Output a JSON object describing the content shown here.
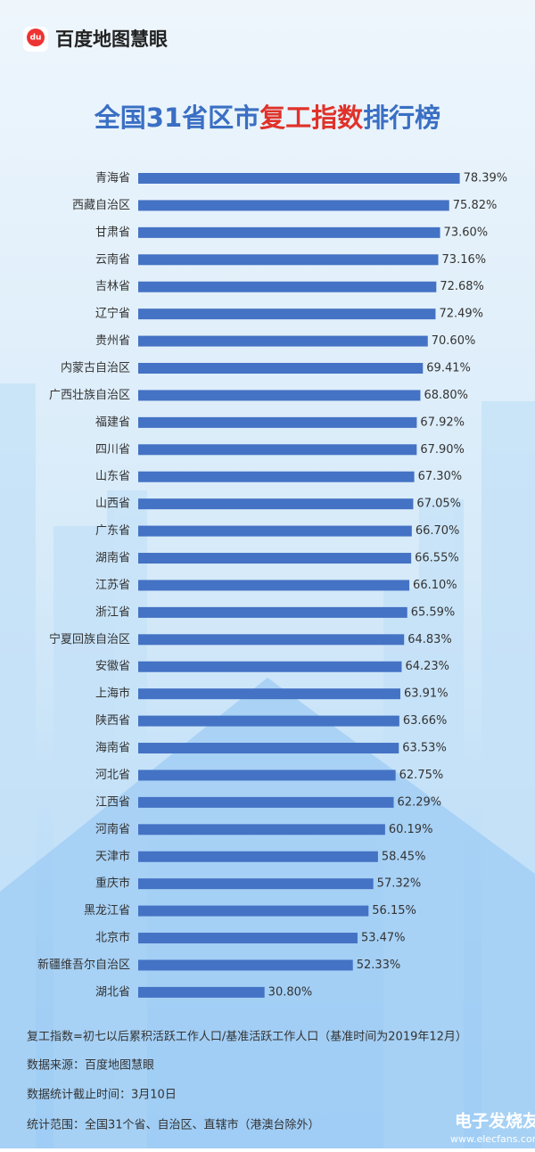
{
  "brand": {
    "icon": "du",
    "name": "百度地图慧眼"
  },
  "chart_data": {
    "type": "bar",
    "orientation": "horizontal",
    "title": [
      "全国31省区市",
      "复工指数",
      "排行榜"
    ],
    "title_colors": [
      "#3a6fc4",
      "#e0322a",
      "#3a6fc4"
    ],
    "color": "#4472c4",
    "categories": [
      "青海省",
      "西藏自治区",
      "甘肃省",
      "云南省",
      "吉林省",
      "辽宁省",
      "贵州省",
      "内蒙古自治区",
      "广西壮族自治区",
      "福建省",
      "四川省",
      "山东省",
      "山西省",
      "广东省",
      "湖南省",
      "江苏省",
      "浙江省",
      "宁夏回族自治区",
      "安徽省",
      "上海市",
      "陕西省",
      "海南省",
      "河北省",
      "江西省",
      "河南省",
      "天津市",
      "重庆市",
      "黑龙江省",
      "北京市",
      "新疆维吾尔自治区",
      "湖北省"
    ],
    "values": [
      78.39,
      75.82,
      73.6,
      73.16,
      72.68,
      72.49,
      70.6,
      69.41,
      68.8,
      67.92,
      67.9,
      67.3,
      67.05,
      66.7,
      66.55,
      66.1,
      65.59,
      64.83,
      64.23,
      63.91,
      63.66,
      63.53,
      62.75,
      62.29,
      60.19,
      58.45,
      57.32,
      56.15,
      53.47,
      52.33,
      30.8
    ],
    "value_labels": [
      "78.39%",
      "75.82%",
      "73.60%",
      "73.16%",
      "72.68%",
      "72.49%",
      "70.60%",
      "69.41%",
      "68.80%",
      "67.92%",
      "67.90%",
      "67.30%",
      "67.05%",
      "66.70%",
      "66.55%",
      "66.10%",
      "65.59%",
      "64.83%",
      "64.23%",
      "63.91%",
      "63.66%",
      "63.53%",
      "62.75%",
      "62.29%",
      "60.19%",
      "58.45%",
      "57.32%",
      "56.15%",
      "53.47%",
      "52.33%",
      "30.80%"
    ]
  },
  "notes": [
    "复工指数=初七以后累积活跃工作人口/基准活跃工作人口（基准时间为2019年12月）",
    "数据来源：百度地图慧眼",
    "数据统计截止时间：3月10日",
    "统计范围：全国31个省、自治区、直辖市（港澳台除外）"
  ],
  "watermark": {
    "name": "电子发烧友",
    "url": "www.elecfans.com"
  }
}
